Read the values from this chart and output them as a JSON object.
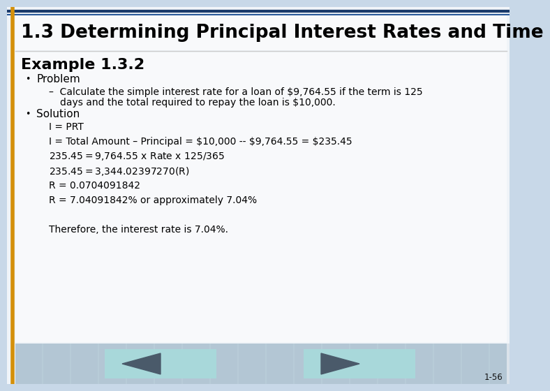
{
  "title": "1.3 Determining Principal Interest Rates and Time",
  "title_fontsize": 19,
  "example_heading": "Example 1.3.2",
  "example_heading_fontsize": 16,
  "bullet1": "Problem",
  "bullet2": "Solution",
  "sub_line1": "–  Calculate the simple interest rate for a loan of $9,764.55 if the term is 125",
  "sub_line2": "days and the total required to repay the loan is $10,000.",
  "solution_lines": [
    "I = PRT",
    "I = Total Amount – Principal = $10,000 -- $9,764.55 = $235.45",
    "$235.45 = $9,764.55 x Rate x 125/365",
    "$235.45 = $3,344.02397270(R)",
    "R = 0.0704091842",
    "R = 7.04091842% or approximately 7.04%"
  ],
  "conclusion": "Therefore, the interest rate is 7.04%.",
  "slide_number": "1-56",
  "outer_bg": "#c8d8e8",
  "slide_bg": "#f0f4f8",
  "content_bg": "#f8f9fb",
  "header_bg": "#f8f9fb",
  "top_line1_color": "#1a3a6a",
  "top_line2_color": "#2a5a9a",
  "left_border_color": "#d4900a",
  "nav_button_color": "#a8d8da",
  "nav_arrow_color": "#4a5a6a",
  "text_color": "#000000"
}
